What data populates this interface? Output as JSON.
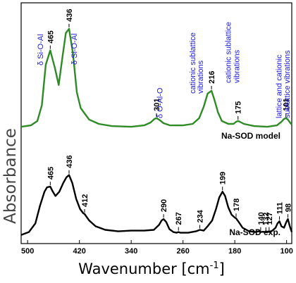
{
  "chart_data": {
    "type": "line",
    "xlabel": "Wavenumber [cm",
    "xlabel_sup": "-1",
    "xlabel_end": "]",
    "ylabel": "Absorbance",
    "xlim": [
      510,
      92
    ],
    "x_ticks": [
      500,
      420,
      340,
      260,
      180,
      100
    ],
    "x_tick_labels": [
      "500",
      "420",
      "340",
      "260",
      "180",
      "100"
    ],
    "grid": false,
    "series": [
      {
        "name": "Na-SOD model",
        "color": "#2e8b25",
        "points": [
          [
            510,
            0.09
          ],
          [
            495,
            0.1
          ],
          [
            485,
            0.13
          ],
          [
            478,
            0.24
          ],
          [
            472,
            0.52
          ],
          [
            465,
            0.62
          ],
          [
            458,
            0.5
          ],
          [
            452,
            0.38
          ],
          [
            446,
            0.58
          ],
          [
            441,
            0.74
          ],
          [
            436,
            0.77
          ],
          [
            430,
            0.6
          ],
          [
            424,
            0.33
          ],
          [
            418,
            0.22
          ],
          [
            405,
            0.14
          ],
          [
            390,
            0.11
          ],
          [
            370,
            0.095
          ],
          [
            340,
            0.09
          ],
          [
            320,
            0.1
          ],
          [
            310,
            0.12
          ],
          [
            304,
            0.145
          ],
          [
            301,
            0.15
          ],
          [
            297,
            0.14
          ],
          [
            290,
            0.115
          ],
          [
            280,
            0.1
          ],
          [
            260,
            0.1
          ],
          [
            245,
            0.11
          ],
          [
            235,
            0.15
          ],
          [
            228,
            0.23
          ],
          [
            222,
            0.32
          ],
          [
            216,
            0.34
          ],
          [
            211,
            0.27
          ],
          [
            206,
            0.19
          ],
          [
            200,
            0.13
          ],
          [
            190,
            0.11
          ],
          [
            182,
            0.11
          ],
          [
            178,
            0.125
          ],
          [
            175,
            0.13
          ],
          [
            172,
            0.125
          ],
          [
            166,
            0.11
          ],
          [
            150,
            0.095
          ],
          [
            130,
            0.09
          ],
          [
            115,
            0.1
          ],
          [
            108,
            0.125
          ],
          [
            104,
            0.145
          ],
          [
            101,
            0.15
          ],
          [
            98,
            0.14
          ],
          [
            94,
            0.115
          ],
          [
            92,
            0.105
          ]
        ],
        "peaks": [
          {
            "x": 465,
            "label": "465"
          },
          {
            "x": 436,
            "label": "436"
          },
          {
            "x": 301,
            "label": "301"
          },
          {
            "x": 216,
            "label": "216"
          },
          {
            "x": 175,
            "label": "175"
          },
          {
            "x": 101,
            "label": "101"
          }
        ]
      },
      {
        "name": "Na-SOD exp.",
        "color": "#000000",
        "points": [
          [
            510,
            -0.66
          ],
          [
            498,
            -0.64
          ],
          [
            488,
            -0.58
          ],
          [
            481,
            -0.46
          ],
          [
            474,
            -0.36
          ],
          [
            470,
            -0.33
          ],
          [
            465,
            -0.325
          ],
          [
            461,
            -0.36
          ],
          [
            457,
            -0.39
          ],
          [
            451,
            -0.36
          ],
          [
            445,
            -0.3
          ],
          [
            440,
            -0.26
          ],
          [
            436,
            -0.245
          ],
          [
            431,
            -0.3
          ],
          [
            425,
            -0.41
          ],
          [
            419,
            -0.48
          ],
          [
            414,
            -0.51
          ],
          [
            412,
            -0.515
          ],
          [
            405,
            -0.56
          ],
          [
            395,
            -0.6
          ],
          [
            380,
            -0.625
          ],
          [
            360,
            -0.635
          ],
          [
            340,
            -0.63
          ],
          [
            320,
            -0.63
          ],
          [
            305,
            -0.625
          ],
          [
            297,
            -0.59
          ],
          [
            293,
            -0.56
          ],
          [
            290,
            -0.55
          ],
          [
            286,
            -0.57
          ],
          [
            281,
            -0.62
          ],
          [
            275,
            -0.64
          ],
          [
            270,
            -0.645
          ],
          [
            267,
            -0.64
          ],
          [
            264,
            -0.645
          ],
          [
            252,
            -0.645
          ],
          [
            240,
            -0.635
          ],
          [
            234,
            -0.625
          ],
          [
            228,
            -0.63
          ],
          [
            222,
            -0.6
          ],
          [
            215,
            -0.56
          ],
          [
            209,
            -0.48
          ],
          [
            204,
            -0.4
          ],
          [
            199,
            -0.36
          ],
          [
            195,
            -0.39
          ],
          [
            190,
            -0.47
          ],
          [
            185,
            -0.52
          ],
          [
            180,
            -0.54
          ],
          [
            178,
            -0.545
          ],
          [
            174,
            -0.57
          ],
          [
            168,
            -0.61
          ],
          [
            158,
            -0.635
          ],
          [
            148,
            -0.64
          ],
          [
            143,
            -0.635
          ],
          [
            140,
            -0.64
          ],
          [
            136,
            -0.638
          ],
          [
            132,
            -0.642
          ],
          [
            129,
            -0.636
          ],
          [
            127,
            -0.64
          ],
          [
            122,
            -0.63
          ],
          [
            117,
            -0.61
          ],
          [
            114,
            -0.58
          ],
          [
            111,
            -0.565
          ],
          [
            108,
            -0.6
          ],
          [
            104,
            -0.61
          ],
          [
            100,
            -0.565
          ],
          [
            98,
            -0.55
          ],
          [
            95,
            -0.6
          ],
          [
            92,
            -0.64
          ]
        ],
        "peaks": [
          {
            "x": 465,
            "label": "465"
          },
          {
            "x": 436,
            "label": "436"
          },
          {
            "x": 412,
            "label": "412"
          },
          {
            "x": 290,
            "label": "290"
          },
          {
            "x": 267,
            "label": "267"
          },
          {
            "x": 234,
            "label": "234"
          },
          {
            "x": 199,
            "label": "199"
          },
          {
            "x": 178,
            "label": "178"
          },
          {
            "x": 140,
            "label": "140"
          },
          {
            "x": 132,
            "label": "132"
          },
          {
            "x": 127,
            "label": "127"
          },
          {
            "x": 111,
            "label": "111"
          },
          {
            "x": 98,
            "label": "98"
          }
        ]
      }
    ],
    "annotations": [
      {
        "text": "δ Si-O-Al",
        "x": 476
      },
      {
        "text": "δ Si-O-Al",
        "x": 424
      },
      {
        "text": "δ O-Al-O",
        "x": 292
      },
      {
        "text": "cationic sublattice",
        "x": 241
      },
      {
        "text": "vibrations",
        "x": 229
      },
      {
        "text": "cationic sublattice",
        "x": 186
      },
      {
        "text": "vibrations",
        "x": 173
      },
      {
        "text": "lattice and cationic",
        "x": 108
      },
      {
        "text": "sublattice vibrations",
        "x": 95
      }
    ]
  }
}
